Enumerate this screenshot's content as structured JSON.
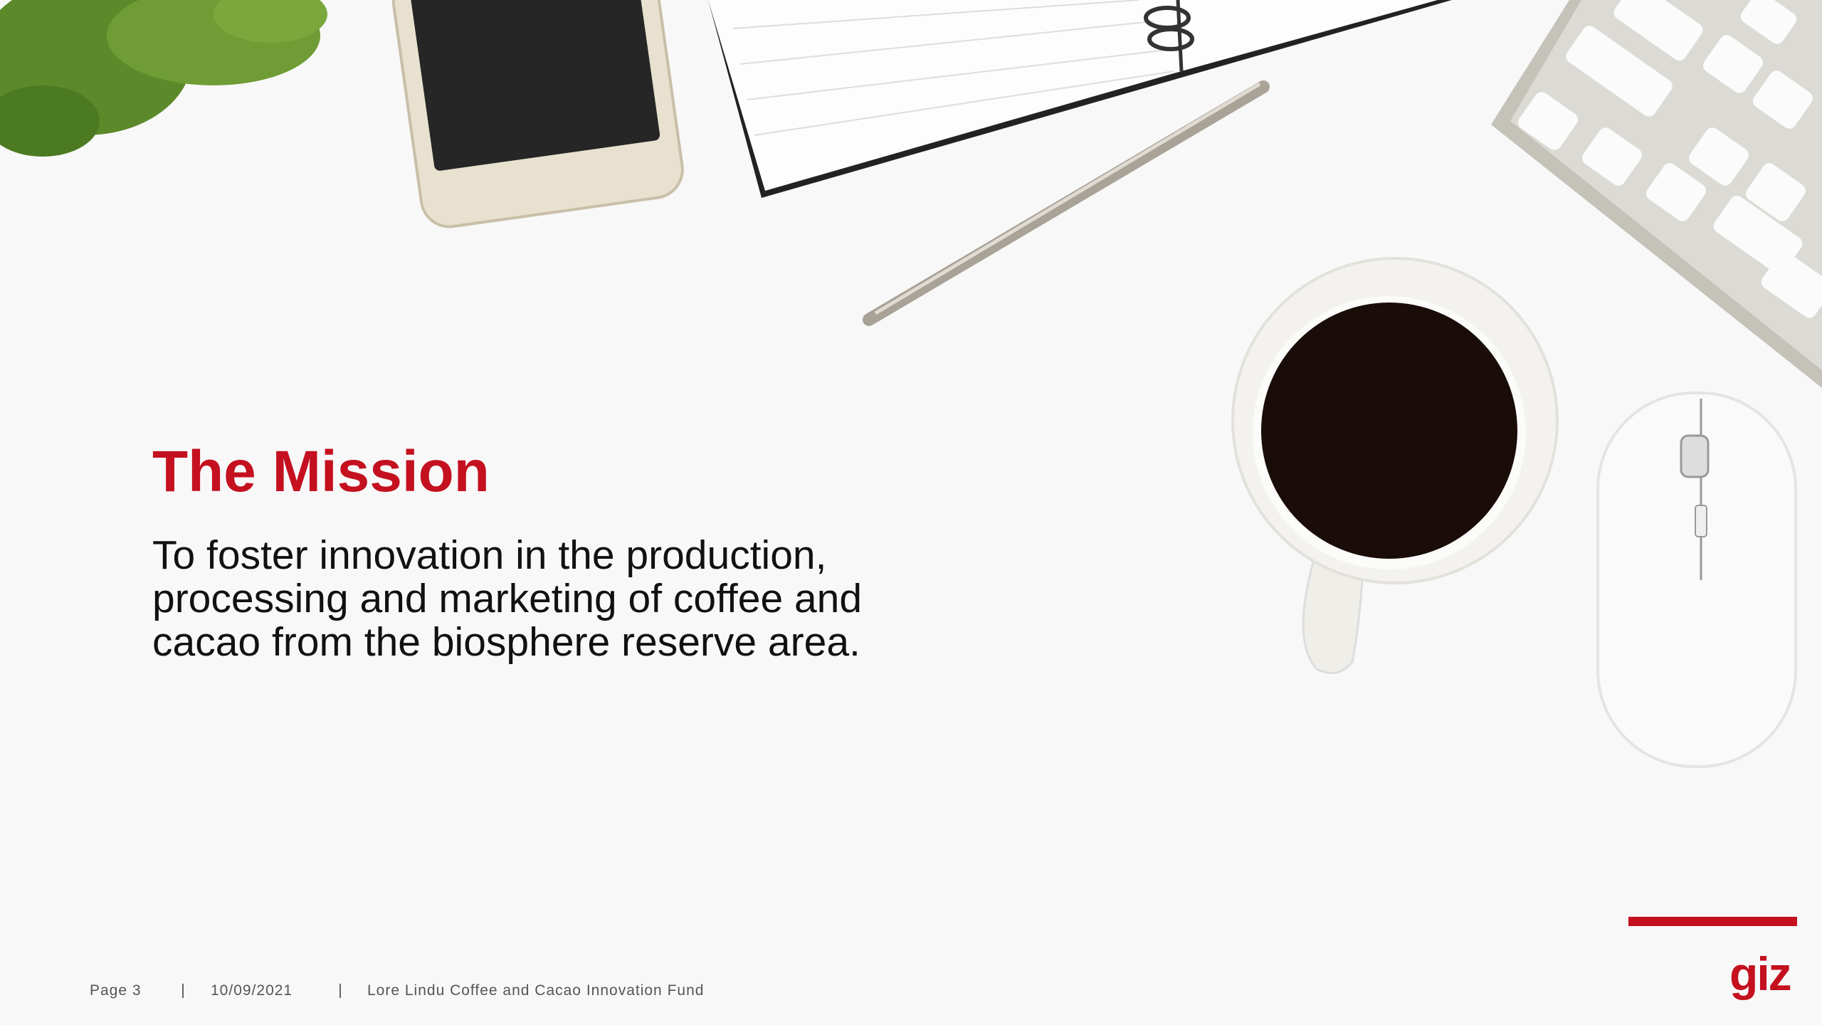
{
  "slide": {
    "title": "The Mission",
    "body_lines": [
      "To foster innovation in the production,",
      "processing and marketing of coffee and",
      "cacao from the biosphere reserve area."
    ]
  },
  "footer": {
    "page": "Page 3",
    "date": "10/09/2021",
    "project": "Lore Lindu Coffee and Cacao Innovation Fund"
  },
  "logo": {
    "text": "giz"
  }
}
